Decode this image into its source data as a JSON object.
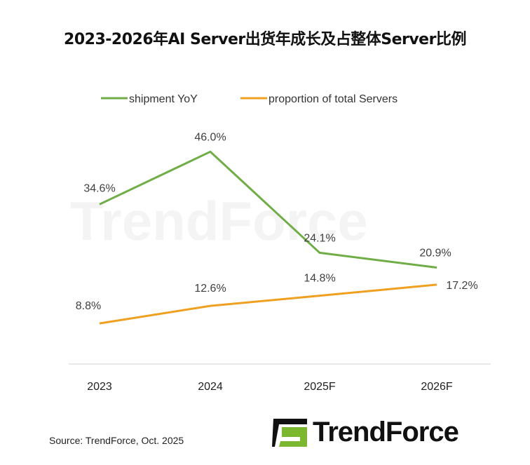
{
  "chart_data": {
    "type": "line",
    "title": "2023-2026年AI Server出货年成长及占整体Server比例",
    "categories": [
      "2023",
      "2024",
      "2025F",
      "2026F"
    ],
    "series": [
      {
        "name": "shipment YoY",
        "values": [
          34.6,
          46.0,
          24.1,
          20.9
        ],
        "labels": [
          "34.6%",
          "46.0%",
          "24.1%",
          "20.9%"
        ],
        "color": "#70ad47"
      },
      {
        "name": "proportion of total Servers",
        "values": [
          8.8,
          12.6,
          14.8,
          17.2
        ],
        "labels": [
          "8.8%",
          "12.6%",
          "14.8%",
          "17.2%"
        ],
        "color": "#f0a020"
      }
    ],
    "unit": "%",
    "ylim": [
      0,
      50
    ],
    "grid": false,
    "legend": "top",
    "xlabel": "",
    "ylabel": ""
  },
  "source": "Source: TrendForce, Oct. 2025",
  "logo": {
    "text": "TrendForce",
    "watermark": "TrendForce",
    "colors": [
      "#111111",
      "#7cb82f"
    ]
  }
}
